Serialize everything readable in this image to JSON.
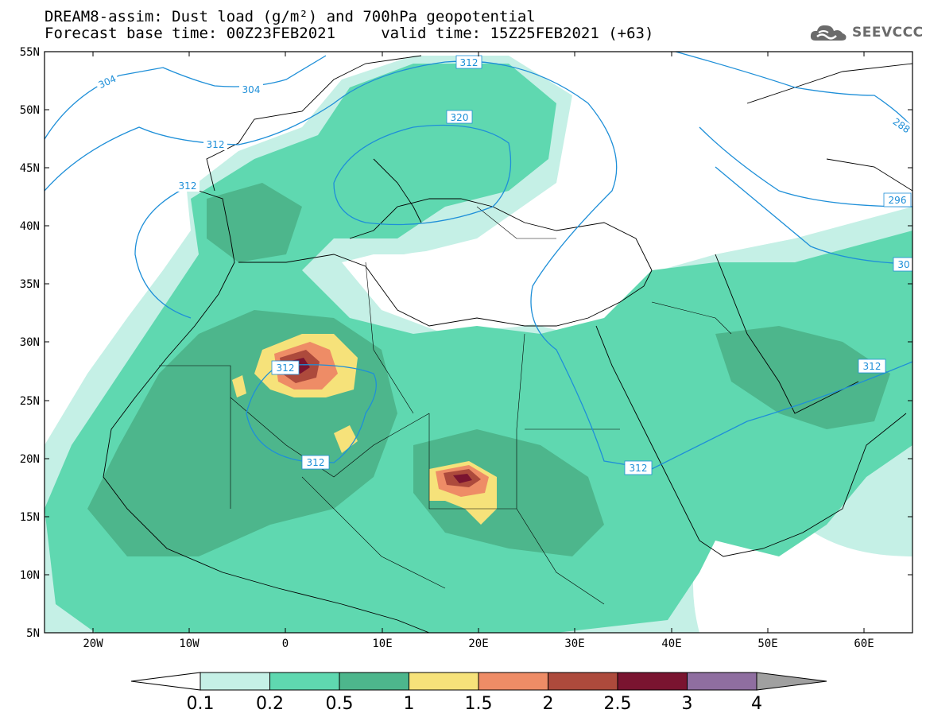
{
  "title": {
    "line1": "DREAM8-assim: Dust load (g/m²) and 700hPa geopotential",
    "line2": "Forecast base time: 00Z23FEB2021     valid time: 15Z25FEB2021 (+63)"
  },
  "logo": {
    "text": "SEEVCCC",
    "icon": "cloud-icon"
  },
  "axes": {
    "lat_labels": [
      "55N",
      "50N",
      "45N",
      "40N",
      "35N",
      "30N",
      "25N",
      "20N",
      "15N",
      "10N",
      "5N"
    ],
    "lon_labels": [
      "20W",
      "10W",
      "0",
      "10E",
      "20E",
      "30E",
      "40E",
      "50E",
      "60E"
    ]
  },
  "contour_labels": [
    "304",
    "304",
    "312",
    "312",
    "312",
    "320",
    "288",
    "296",
    "30",
    "312",
    "312",
    "312",
    "312"
  ],
  "colorbar": {
    "labels": [
      "0.1",
      "0.2",
      "0.5",
      "1",
      "1.5",
      "2",
      "2.5",
      "3",
      "4"
    ],
    "colors": [
      "#c5f0e6",
      "#5fd8b0",
      "#4db68c",
      "#f6e27a",
      "#ee8c66",
      "#ad4a3c",
      "#7a1430",
      "#8f6ea0"
    ],
    "under_color": "#ffffff",
    "over_color": "#a0a0a0"
  },
  "colors": {
    "contour": "#1e8fd8",
    "coast": "#000000"
  }
}
